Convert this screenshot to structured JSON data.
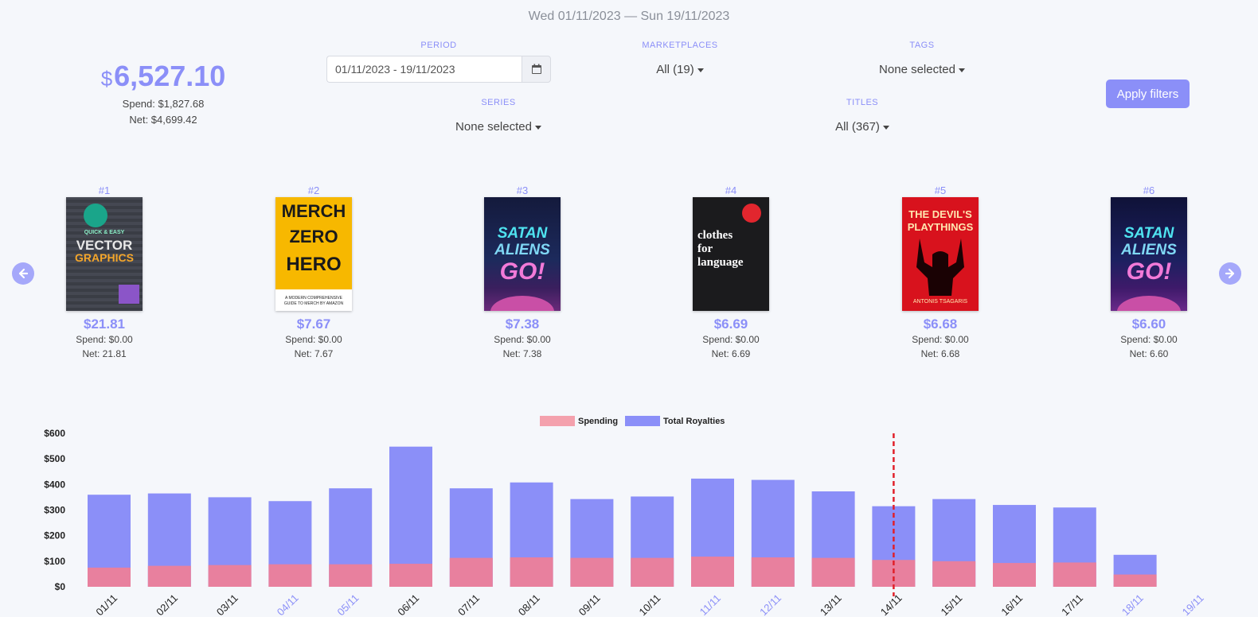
{
  "header": {
    "date_range": "Wed 01/11/2023 — Sun 19/11/2023"
  },
  "summary": {
    "currency": "$",
    "total": "6,527.10",
    "spend": "Spend: $1,827.68",
    "net": "Net: $4,699.42"
  },
  "filters": {
    "period_label": "PERIOD",
    "period_value": "01/11/2023 - 19/11/2023",
    "marketplaces_label": "MARKETPLACES",
    "marketplaces_value": "All (19)",
    "tags_label": "TAGS",
    "tags_value": "None selected",
    "series_label": "SERIES",
    "series_value": "None selected",
    "titles_label": "TITLES",
    "titles_value": "All (367)",
    "apply_label": "Apply filters"
  },
  "books": [
    {
      "rank": "#1",
      "price": "$21.81",
      "spend": "Spend: $0.00",
      "net": "Net: 21.81",
      "cover": "cover-vector-graphics"
    },
    {
      "rank": "#2",
      "price": "$7.67",
      "spend": "Spend: $0.00",
      "net": "Net: 7.67",
      "cover": "cover-merch-zero-to-hero"
    },
    {
      "rank": "#3",
      "price": "$7.38",
      "spend": "Spend: $0.00",
      "net": "Net: 7.38",
      "cover": "cover-satan-aliens-go"
    },
    {
      "rank": "#4",
      "price": "$6.69",
      "spend": "Spend: $0.00",
      "net": "Net: 6.69",
      "cover": "cover-clothes-for-language"
    },
    {
      "rank": "#5",
      "price": "$6.68",
      "spend": "Spend: $0.00",
      "net": "Net: 6.68",
      "cover": "cover-the-devils-playthings"
    },
    {
      "rank": "#6",
      "price": "$6.60",
      "spend": "Spend: $0.00",
      "net": "Net: 6.60",
      "cover": "cover-satan-aliens-go"
    }
  ],
  "cover_text": {
    "b1_top": "QUICK & EASY",
    "b1_main1": "VECTOR",
    "b1_main2": "GRAPHICS",
    "b2_l1": "MERCH",
    "b2_l2": "ZERO",
    "b2_l3": "HERO",
    "b2_sub": "A MODERN COMPREHENSIVE GUIDE TO MERCH BY AMAZON",
    "b3_l1": "SATAN",
    "b3_l2": "ALIENS",
    "b3_l3": "GO!",
    "b4_l1": "clothes",
    "b4_l2": "for",
    "b4_l3": "language",
    "b5_l1": "THE DEVIL'S",
    "b5_l2": "PLAYTHINGS",
    "b5_author": "ANTONIS TSAGARIS"
  },
  "colors": {
    "accent": "#8b8ff8",
    "spending": "#e8809e",
    "spending_legend": "#f4a1ad",
    "royalties": "#8b8ff8",
    "marker": "#e0202a"
  },
  "icons": {
    "calendar": "calendar-icon",
    "prev": "arrow-left-circle-icon",
    "next": "arrow-right-circle-icon"
  },
  "chart_data": {
    "type": "bar",
    "stacked": true,
    "legend": [
      "Spending",
      "Total Royalties"
    ],
    "legend_position": "top-center",
    "categories": [
      "01/11",
      "02/11",
      "03/11",
      "04/11",
      "05/11",
      "06/11",
      "07/11",
      "08/11",
      "09/11",
      "10/11",
      "11/11",
      "12/11",
      "13/11",
      "14/11",
      "15/11",
      "16/11",
      "17/11",
      "18/11",
      "19/11"
    ],
    "highlighted_categories": [
      "04/11",
      "05/11",
      "11/11",
      "12/11",
      "18/11",
      "19/11"
    ],
    "series": [
      {
        "name": "Spending",
        "values": [
          75,
          82,
          85,
          88,
          88,
          90,
          113,
          115,
          113,
          113,
          118,
          115,
          113,
          105,
          100,
          93,
          95,
          48,
          0
        ]
      },
      {
        "name": "Total Royalties",
        "values": [
          360,
          365,
          350,
          335,
          385,
          548,
          385,
          408,
          343,
          353,
          423,
          418,
          373,
          315,
          343,
          320,
          310,
          125,
          0
        ]
      }
    ],
    "ylim": [
      0,
      600
    ],
    "yticks": [
      "$0",
      "$100",
      "$200",
      "$300",
      "$400",
      "$500",
      "$600"
    ],
    "marker_after": "14/11",
    "grid": false
  }
}
